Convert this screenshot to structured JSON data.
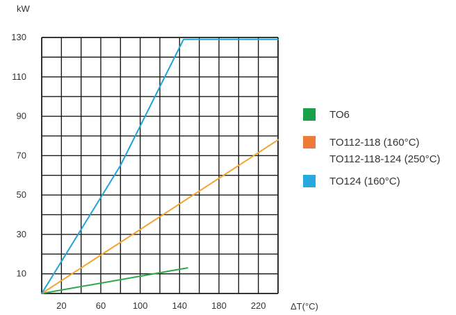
{
  "chart_data": {
    "type": "line",
    "ylabel": "kW",
    "xlabel": "ΔT(°C)",
    "xlim": [
      0,
      240
    ],
    "ylim": [
      0,
      130
    ],
    "grid": true,
    "x_grid_step": 20,
    "y_grid_step": 10,
    "x_tick_labels": [
      {
        "x": 20,
        "label": "20"
      },
      {
        "x": 60,
        "label": "60"
      },
      {
        "x": 100,
        "label": "100"
      },
      {
        "x": 140,
        "label": "140"
      },
      {
        "x": 180,
        "label": "180"
      },
      {
        "x": 220,
        "label": "220"
      }
    ],
    "y_tick_labels": [
      {
        "y": 10,
        "label": "10"
      },
      {
        "y": 30,
        "label": "30"
      },
      {
        "y": 50,
        "label": "50"
      },
      {
        "y": 70,
        "label": "70"
      },
      {
        "y": 90,
        "label": "90"
      },
      {
        "y": 110,
        "label": "110"
      },
      {
        "y": 130,
        "label": "130"
      }
    ],
    "series": [
      {
        "key": "to6",
        "color": "#2ea64a",
        "points": [
          [
            0,
            0
          ],
          [
            148,
            13
          ]
        ]
      },
      {
        "key": "to112",
        "color": "#f2a531",
        "points": [
          [
            0,
            0
          ],
          [
            240,
            78
          ]
        ]
      },
      {
        "key": "to124",
        "color": "#1fa3d4",
        "points": [
          [
            0,
            0
          ],
          [
            80,
            65
          ],
          [
            144,
            129
          ],
          [
            240,
            129
          ]
        ]
      }
    ],
    "legend": {
      "placement": "right",
      "entries": [
        {
          "labels": [
            "TO6"
          ],
          "color": "#1aa04a"
        },
        {
          "labels": [
            "TO112-118 (160°C)",
            "TO112-118-124 (250°C)"
          ],
          "color": "#ee7a3a"
        },
        {
          "labels": [
            "TO124 (160°C)"
          ],
          "color": "#26a9e0"
        }
      ]
    }
  }
}
